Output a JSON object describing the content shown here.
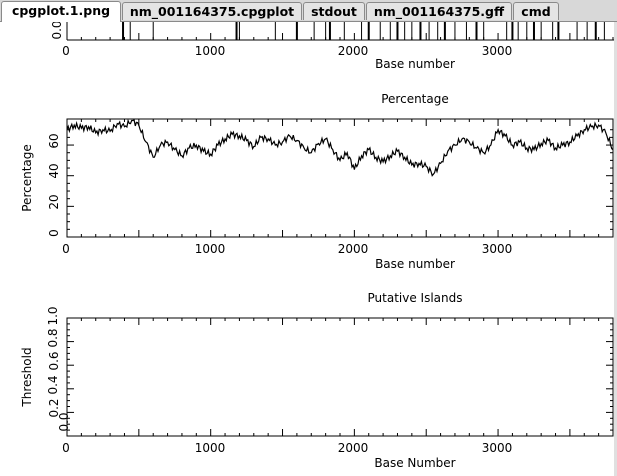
{
  "tabs": [
    {
      "label": "cpgplot.1.png",
      "active": true
    },
    {
      "label": "nm_001164375.cpgplot",
      "active": false
    },
    {
      "label": "stdout",
      "active": false
    },
    {
      "label": "nm_001164375.gff",
      "active": false
    },
    {
      "label": "cmd",
      "active": false
    }
  ],
  "top_plot": {
    "ytick": "0.0",
    "xticks": [
      "0",
      "1000",
      "2000",
      "3000"
    ],
    "xlabel": "Base number"
  },
  "percentage_plot": {
    "title": "Percentage",
    "ylabel": "Percentage",
    "yticks": [
      "0",
      "20",
      "40",
      "60"
    ],
    "xticks": [
      "0",
      "1000",
      "2000",
      "3000"
    ],
    "xlabel": "Base number"
  },
  "islands_plot": {
    "title": "Putative Islands",
    "ylabel": "Threshold",
    "yticks": [
      "0.0",
      "0.2",
      "0.4",
      "0.6",
      "0.8",
      "1.0"
    ],
    "xticks": [
      "0",
      "1000",
      "2000",
      "3000"
    ],
    "xlabel": "Base Number"
  },
  "chart_data": [
    {
      "type": "line",
      "title": "",
      "xlabel": "Base number",
      "ylabel": "",
      "xlim": [
        0,
        3800
      ],
      "note_x_is_base_number": true,
      "spikes_x": [
        390,
        440,
        600,
        1180,
        1200,
        1450,
        1600,
        1720,
        1800,
        1830,
        1930,
        2050,
        2100,
        2180,
        2250,
        2300,
        2350,
        2400,
        2460,
        2520,
        2580,
        2630,
        2700,
        2780,
        2850,
        2900,
        3060,
        3100,
        3140,
        3200,
        3250,
        3300,
        3380,
        3420,
        3550,
        3620,
        3680,
        3740
      ]
    },
    {
      "type": "line",
      "title": "Percentage",
      "xlabel": "Base number",
      "ylabel": "Percentage",
      "xlim": [
        0,
        3800
      ],
      "ylim": [
        0,
        77
      ],
      "grid": false,
      "x": [
        0,
        50,
        100,
        150,
        200,
        250,
        300,
        350,
        400,
        450,
        500,
        550,
        600,
        650,
        700,
        750,
        800,
        850,
        900,
        950,
        1000,
        1050,
        1100,
        1150,
        1200,
        1250,
        1300,
        1350,
        1400,
        1450,
        1500,
        1550,
        1600,
        1650,
        1700,
        1750,
        1800,
        1850,
        1900,
        1950,
        2000,
        2050,
        2100,
        2150,
        2200,
        2250,
        2300,
        2350,
        2400,
        2450,
        2500,
        2550,
        2600,
        2650,
        2700,
        2750,
        2800,
        2850,
        2900,
        2950,
        3000,
        3050,
        3100,
        3150,
        3200,
        3250,
        3300,
        3350,
        3400,
        3450,
        3500,
        3550,
        3600,
        3650,
        3700,
        3750,
        3800
      ],
      "values": [
        70,
        73,
        71,
        72,
        68,
        70,
        69,
        74,
        72,
        76,
        73,
        62,
        52,
        60,
        62,
        57,
        53,
        58,
        60,
        56,
        54,
        60,
        64,
        67,
        66,
        63,
        59,
        65,
        64,
        60,
        62,
        66,
        63,
        58,
        55,
        61,
        64,
        57,
        50,
        55,
        44,
        53,
        57,
        52,
        49,
        53,
        56,
        52,
        47,
        48,
        46,
        41,
        48,
        56,
        60,
        64,
        62,
        58,
        55,
        60,
        70,
        66,
        60,
        62,
        58,
        57,
        61,
        63,
        58,
        60,
        62,
        66,
        70,
        72,
        73,
        68,
        57
      ]
    },
    {
      "type": "line",
      "title": "Putative Islands",
      "xlabel": "Base Number",
      "ylabel": "Threshold",
      "xlim": [
        0,
        3800
      ],
      "ylim": [
        0,
        1
      ],
      "values": []
    }
  ]
}
